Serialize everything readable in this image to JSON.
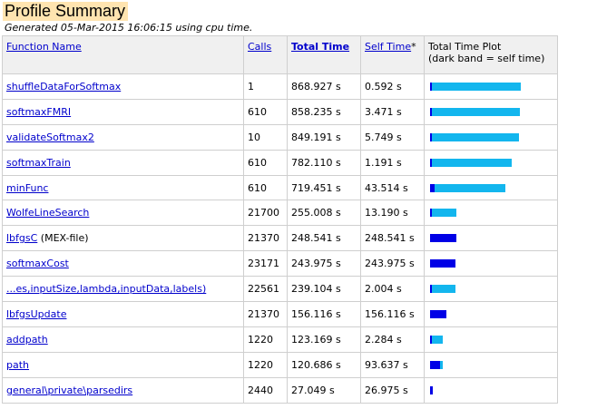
{
  "header": {
    "title": "Profile Summary",
    "generated": "Generated 05-Mar-2015 16:06:15 using cpu time."
  },
  "table": {
    "columns": {
      "function": "Function Name",
      "calls": "Calls",
      "total": "Total Time",
      "self": "Self Time",
      "self_suffix": "*",
      "plot_line1": "Total Time Plot",
      "plot_line2": "(dark band = self time)"
    },
    "rows": [
      {
        "name": "shuffleDataForSoftmax",
        "suffix": "",
        "calls": "1",
        "total": "868.927 s",
        "self": "0.592 s",
        "total_val": 868.927,
        "self_val": 0.592
      },
      {
        "name": "softmaxFMRI",
        "suffix": "",
        "calls": "610",
        "total": "858.235 s",
        "self": "3.471 s",
        "total_val": 858.235,
        "self_val": 3.471
      },
      {
        "name": "validateSoftmax2",
        "suffix": "",
        "calls": "10",
        "total": "849.191 s",
        "self": "5.749 s",
        "total_val": 849.191,
        "self_val": 5.749
      },
      {
        "name": "softmaxTrain",
        "suffix": "",
        "calls": "610",
        "total": "782.110 s",
        "self": "1.191 s",
        "total_val": 782.11,
        "self_val": 1.191
      },
      {
        "name": "minFunc",
        "suffix": "",
        "calls": "610",
        "total": "719.451 s",
        "self": "43.514 s",
        "total_val": 719.451,
        "self_val": 43.514
      },
      {
        "name": "WolfeLineSearch",
        "suffix": "",
        "calls": "21700",
        "total": "255.008 s",
        "self": "13.190 s",
        "total_val": 255.008,
        "self_val": 13.19
      },
      {
        "name": "lbfgsC",
        "suffix": " (MEX-file)",
        "calls": "21370",
        "total": "248.541 s",
        "self": "248.541 s",
        "total_val": 248.541,
        "self_val": 248.541
      },
      {
        "name": "softmaxCost",
        "suffix": "",
        "calls": "23171",
        "total": "243.975 s",
        "self": "243.975 s",
        "total_val": 243.975,
        "self_val": 243.975
      },
      {
        "name": "...es,inputSize,lambda,inputData,labels)",
        "suffix": "",
        "calls": "22561",
        "total": "239.104 s",
        "self": "2.004 s",
        "total_val": 239.104,
        "self_val": 2.004
      },
      {
        "name": "lbfgsUpdate",
        "suffix": "",
        "calls": "21370",
        "total": "156.116 s",
        "self": "156.116 s",
        "total_val": 156.116,
        "self_val": 156.116
      },
      {
        "name": "addpath",
        "suffix": "",
        "calls": "1220",
        "total": "123.169 s",
        "self": "2.284 s",
        "total_val": 123.169,
        "self_val": 2.284
      },
      {
        "name": "path",
        "suffix": "",
        "calls": "1220",
        "total": "120.686 s",
        "self": "93.637 s",
        "total_val": 120.686,
        "self_val": 93.637
      },
      {
        "name": "general\\private\\parsedirs",
        "suffix": "",
        "calls": "2440",
        "total": "27.049 s",
        "self": "26.975 s",
        "total_val": 27.049,
        "self_val": 26.975
      }
    ]
  },
  "colors": {
    "self_band": "#0000e6",
    "total_band": "#13b6ee",
    "link": "#0000cc",
    "title_highlight": "#ffe4b0"
  }
}
